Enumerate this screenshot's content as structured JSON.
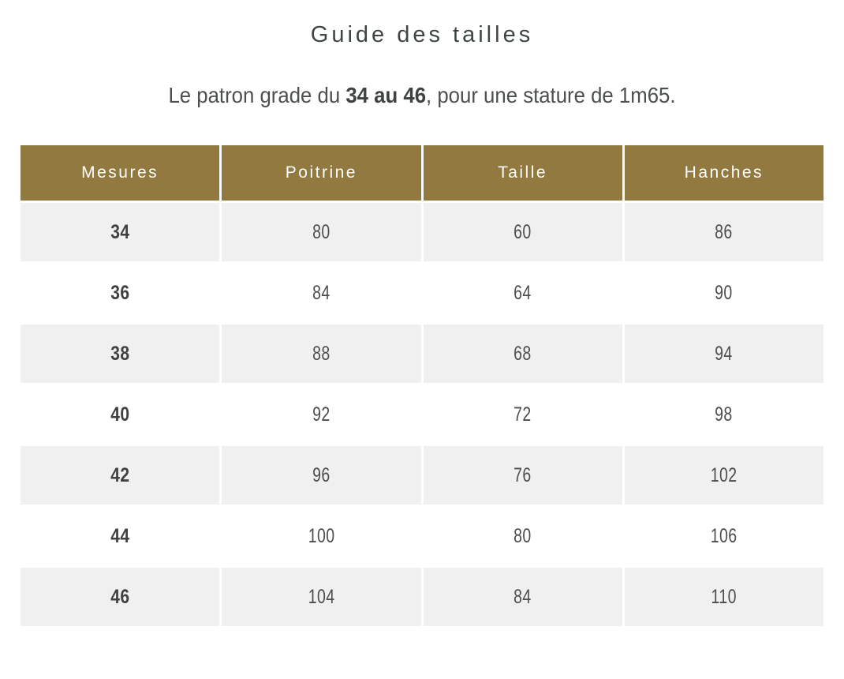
{
  "title": "Guide des tailles",
  "subtitle": {
    "prefix": "Le patron grade du ",
    "bold": "34 au 46",
    "suffix": ", pour une stature de 1m65."
  },
  "colors": {
    "header_bg": "#917940",
    "header_text": "#ffffff",
    "row_alt_bg": "#f0f0f0",
    "row_bg": "#ffffff",
    "body_text": "#4c4c4c",
    "title_text": "#3e4644"
  },
  "table": {
    "columns": [
      "Mesures",
      "Poitrine",
      "Taille",
      "Hanches"
    ],
    "rows": [
      [
        "34",
        "80",
        "60",
        "86"
      ],
      [
        "36",
        "84",
        "64",
        "90"
      ],
      [
        "38",
        "88",
        "68",
        "94"
      ],
      [
        "40",
        "92",
        "72",
        "98"
      ],
      [
        "42",
        "96",
        "76",
        "102"
      ],
      [
        "44",
        "100",
        "80",
        "106"
      ],
      [
        "46",
        "104",
        "84",
        "110"
      ]
    ]
  },
  "chart_data": {
    "type": "table",
    "title": "Guide des tailles",
    "subtitle": "Le patron grade du 34 au 46, pour une stature de 1m65.",
    "columns": [
      "Mesures",
      "Poitrine",
      "Taille",
      "Hanches"
    ],
    "rows": [
      [
        34,
        80,
        60,
        86
      ],
      [
        36,
        84,
        64,
        90
      ],
      [
        38,
        88,
        68,
        94
      ],
      [
        40,
        92,
        72,
        98
      ],
      [
        42,
        96,
        76,
        102
      ],
      [
        44,
        100,
        80,
        106
      ],
      [
        46,
        104,
        84,
        110
      ]
    ],
    "layout_hints": {
      "header_background": "#917940",
      "alternating_rows": true,
      "first_column_bold": true,
      "grid": "white 3px cell gaps"
    }
  }
}
